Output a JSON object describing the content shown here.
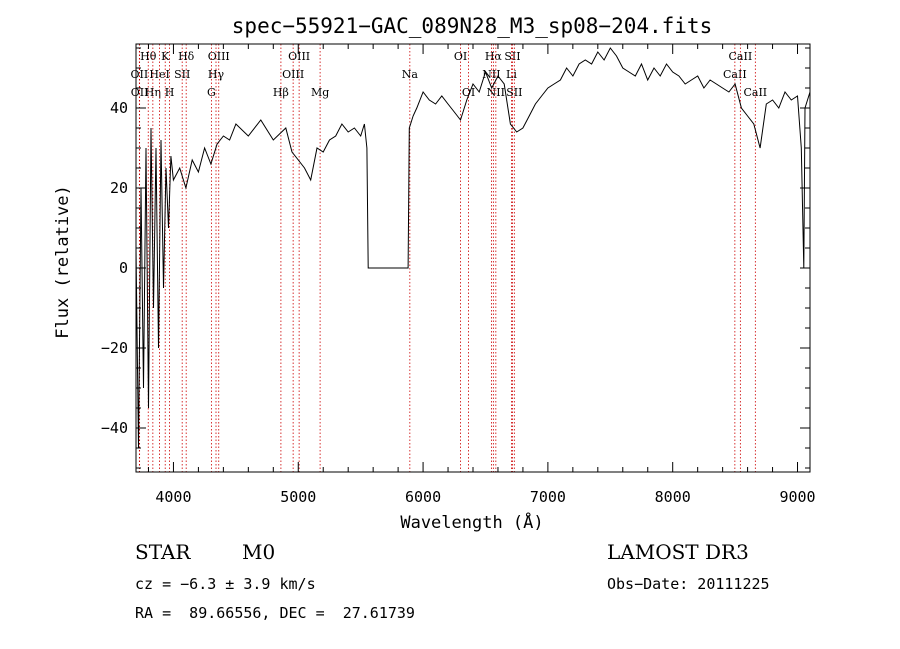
{
  "chart_data": {
    "type": "line",
    "title": "spec−55921−GAC_089N28_M3_sp08−204.fits",
    "xlabel": "Wavelength (Å)",
    "ylabel": "Flux (relative)",
    "xlim": [
      3700,
      9100
    ],
    "ylim": [
      -51,
      56
    ],
    "xticks": [
      4000,
      5000,
      6000,
      7000,
      8000,
      9000
    ],
    "xtick_labels": [
      "4000",
      "5000",
      "6000",
      "7000",
      "8000",
      "9000"
    ],
    "yticks": [
      -40,
      -20,
      0,
      20,
      40
    ],
    "ytick_labels": [
      "−40",
      "−20",
      "0",
      "20",
      "40"
    ],
    "series": [
      {
        "name": "flux",
        "x": [
          3700,
          3720,
          3740,
          3760,
          3780,
          3800,
          3820,
          3840,
          3860,
          3880,
          3900,
          3920,
          3940,
          3960,
          3980,
          4000,
          4050,
          4100,
          4150,
          4200,
          4250,
          4300,
          4350,
          4400,
          4450,
          4500,
          4600,
          4700,
          4800,
          4900,
          4950,
          5000,
          5050,
          5100,
          5150,
          5200,
          5250,
          5300,
          5350,
          5400,
          5450,
          5500,
          5530,
          5550,
          5560,
          5600,
          5700,
          5800,
          5880,
          5890,
          5900,
          5920,
          5950,
          6000,
          6050,
          6100,
          6150,
          6200,
          6250,
          6300,
          6350,
          6400,
          6450,
          6500,
          6550,
          6600,
          6650,
          6700,
          6750,
          6800,
          6850,
          6900,
          6950,
          7000,
          7050,
          7100,
          7150,
          7200,
          7250,
          7300,
          7350,
          7400,
          7450,
          7500,
          7550,
          7600,
          7650,
          7700,
          7750,
          7800,
          7850,
          7900,
          7950,
          8000,
          8050,
          8100,
          8150,
          8200,
          8250,
          8300,
          8350,
          8400,
          8450,
          8500,
          8550,
          8600,
          8650,
          8700,
          8750,
          8800,
          8850,
          8900,
          8950,
          9000,
          9030,
          9050,
          9060,
          9080,
          9100
        ],
        "y": [
          5,
          -45,
          20,
          -30,
          30,
          -35,
          35,
          -10,
          30,
          -20,
          32,
          -5,
          25,
          10,
          28,
          22,
          25,
          20,
          27,
          24,
          30,
          26,
          31,
          33,
          32,
          36,
          33,
          37,
          32,
          35,
          29,
          27,
          25,
          22,
          30,
          29,
          32,
          33,
          36,
          34,
          35,
          33,
          36,
          30,
          0,
          0,
          0,
          0,
          0,
          35,
          36,
          38,
          40,
          44,
          42,
          41,
          43,
          41,
          39,
          37,
          42,
          46,
          44,
          49,
          45,
          48,
          46,
          36,
          34,
          35,
          38,
          41,
          43,
          45,
          46,
          47,
          50,
          48,
          51,
          52,
          51,
          54,
          52,
          55,
          53,
          50,
          49,
          48,
          51,
          47,
          50,
          48,
          51,
          49,
          48,
          46,
          47,
          48,
          45,
          47,
          46,
          45,
          44,
          46,
          40,
          38,
          36,
          30,
          41,
          42,
          40,
          44,
          42,
          43,
          30,
          0,
          40,
          42,
          44
        ]
      }
    ],
    "line_markers": [
      {
        "label": "Hθ",
        "x": 3798,
        "row": 0
      },
      {
        "label": "OII",
        "x": 3727,
        "row": 1
      },
      {
        "label": "OII",
        "x": 3729,
        "row": 2
      },
      {
        "label": "Hη",
        "x": 3835,
        "row": 2
      },
      {
        "label": "HeI",
        "x": 3889,
        "row": 1
      },
      {
        "label": "K",
        "x": 3934,
        "row": 0
      },
      {
        "label": "H",
        "x": 3969,
        "row": 2
      },
      {
        "label": "SII",
        "x": 4070,
        "row": 1
      },
      {
        "label": "Hδ",
        "x": 4102,
        "row": 0
      },
      {
        "label": "OIII",
        "x": 4363,
        "row": 0
      },
      {
        "label": "Hγ",
        "x": 4341,
        "row": 1
      },
      {
        "label": "G",
        "x": 4304,
        "row": 2
      },
      {
        "label": "Hβ",
        "x": 4861,
        "row": 2
      },
      {
        "label": "OIII",
        "x": 4959,
        "row": 1
      },
      {
        "label": "OIII",
        "x": 5007,
        "row": 0
      },
      {
        "label": "Mg",
        "x": 5175,
        "row": 2
      },
      {
        "label": "Na",
        "x": 5894,
        "row": 1
      },
      {
        "label": "OI",
        "x": 6300,
        "row": 0
      },
      {
        "label": "OI",
        "x": 6364,
        "row": 2
      },
      {
        "label": "Hα",
        "x": 6563,
        "row": 0
      },
      {
        "label": "NII",
        "x": 6548,
        "row": 1
      },
      {
        "label": "NII",
        "x": 6583,
        "row": 2
      },
      {
        "label": "Li",
        "x": 6708,
        "row": 1
      },
      {
        "label": "SII",
        "x": 6716,
        "row": 0
      },
      {
        "label": "SII",
        "x": 6731,
        "row": 2
      },
      {
        "label": "CaII",
        "x": 8498,
        "row": 1
      },
      {
        "label": "CaII",
        "x": 8542,
        "row": 0
      },
      {
        "label": "CaII",
        "x": 8662,
        "row": 2
      }
    ]
  },
  "info": {
    "class": "STAR",
    "subclass": "M0",
    "survey": "LAMOST DR3",
    "cz": "cz = −6.3 ± 3.9 km/s",
    "obs_date": "Obs−Date: 20111225",
    "coords": "RA =  89.66556, DEC =  27.61739"
  }
}
